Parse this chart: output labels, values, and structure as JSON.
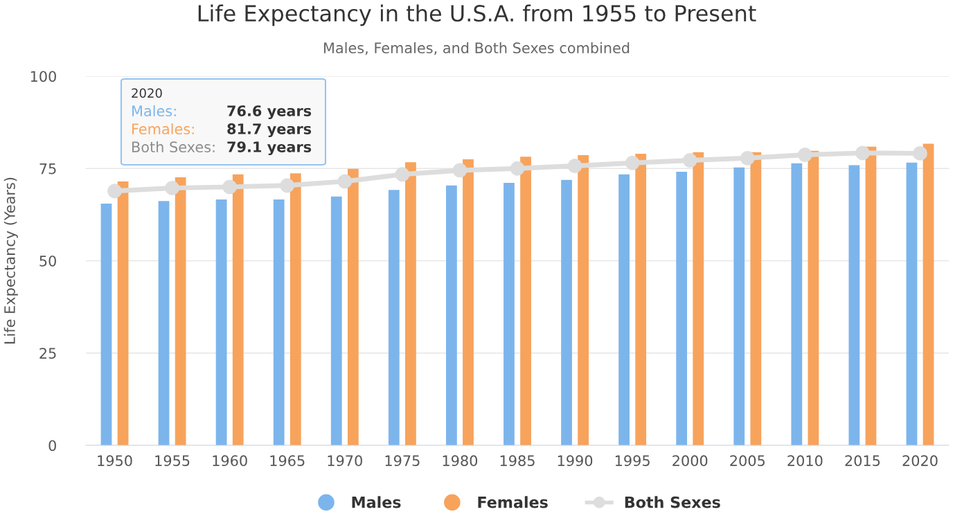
{
  "chart_data": {
    "type": "bar",
    "title": "Life Expectancy in the U.S.A. from 1955 to Present",
    "subtitle": "Males, Females, and Both Sexes combined",
    "ylabel": "Life Expectancy (Years)",
    "categories": [
      "1950",
      "1955",
      "1960",
      "1965",
      "1970",
      "1975",
      "1980",
      "1985",
      "1990",
      "1995",
      "2000",
      "2005",
      "2010",
      "2015",
      "2020"
    ],
    "series": [
      {
        "name": "Males",
        "color": "#7cb5ec",
        "values": [
          65.5,
          66.2,
          66.6,
          66.6,
          67.4,
          69.2,
          70.4,
          71.1,
          71.9,
          73.4,
          74.1,
          75.3,
          76.4,
          75.9,
          76.6
        ]
      },
      {
        "name": "Females",
        "color": "#f7a35c",
        "values": [
          71.5,
          72.6,
          73.4,
          73.7,
          74.9,
          76.7,
          77.5,
          78.2,
          78.6,
          79.0,
          79.4,
          79.4,
          79.8,
          80.9,
          81.7
        ]
      },
      {
        "name": "Both Sexes",
        "type": "line",
        "color": "#dddddd",
        "marker": "circle",
        "values": [
          68.9,
          69.7,
          70.0,
          70.4,
          71.5,
          73.4,
          74.5,
          75.0,
          75.7,
          76.5,
          77.2,
          77.8,
          78.7,
          79.2,
          79.1
        ]
      }
    ],
    "annotations": [
      "2020",
      "Males:",
      "76.6 years",
      "Females:",
      "81.7 years",
      "Both Sexes:",
      "79.1 years"
    ],
    "ylim": [
      0,
      100
    ],
    "yticks": [
      0,
      25,
      50,
      75,
      100
    ],
    "grid": "y",
    "legend": "bottom"
  }
}
